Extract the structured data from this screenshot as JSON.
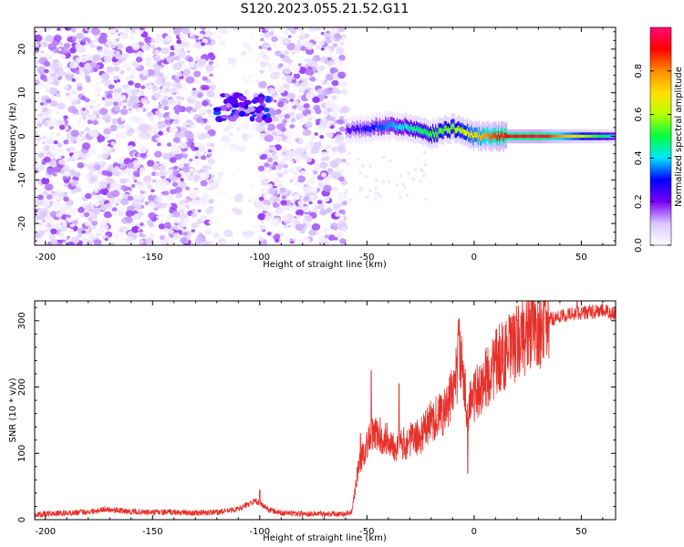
{
  "title": "S120.2023.055.21.52.G11",
  "colors": {
    "snr_line": "#e8302a",
    "colormap": [
      "#ffffff",
      "#d9c6ff",
      "#7a00f5",
      "#0000ff",
      "#00e5ff",
      "#00ff40",
      "#b8ff00",
      "#ffe000",
      "#ff8c00",
      "#ff0000",
      "#ff0a78"
    ]
  },
  "chart_data": [
    {
      "type": "heatmap",
      "xlabel": "Height of straight line (km)",
      "ylabel": "Frequency (Hz)",
      "xlim": [
        -205,
        66
      ],
      "ylim": [
        -25,
        25
      ],
      "xticks": [
        -200,
        -150,
        -100,
        -50,
        0,
        50
      ],
      "xtick_labels": [
        "-200",
        "-150",
        "-100",
        "-50",
        "0",
        "50"
      ],
      "yticks": [
        -20,
        -10,
        0,
        10,
        20
      ],
      "ytick_labels": [
        "-20",
        "-10",
        "0",
        "10",
        "20"
      ],
      "colorbar": {
        "label": "Normalized spectral amplitude",
        "range": [
          0,
          1
        ],
        "ticks": [
          0.0,
          0.2,
          0.4,
          0.6,
          0.8
        ],
        "tick_labels": [
          "0.0",
          "0.2",
          "0.4",
          "0.6",
          "0.8"
        ]
      },
      "noise_region_x": [
        -205,
        -60
      ],
      "gap_region_x": [
        -122,
        -100
      ],
      "blob": {
        "x": [
          -120,
          -96
        ],
        "y_center": 6.5,
        "peak": 0.25
      },
      "ridge": [
        {
          "x": -60,
          "y": 1.5,
          "a": 0.22
        },
        {
          "x": -50,
          "y": 2.0,
          "a": 0.28
        },
        {
          "x": -40,
          "y": 2.5,
          "a": 0.36
        },
        {
          "x": -30,
          "y": 2.0,
          "a": 0.44
        },
        {
          "x": -20,
          "y": 0.5,
          "a": 0.52
        },
        {
          "x": -10,
          "y": 2.0,
          "a": 0.56
        },
        {
          "x": 0,
          "y": 0.0,
          "a": 0.7
        },
        {
          "x": 10,
          "y": 0.0,
          "a": 0.88
        },
        {
          "x": 30,
          "y": 0.0,
          "a": 0.95
        },
        {
          "x": 50,
          "y": 0.0,
          "a": 0.62
        },
        {
          "x": 66,
          "y": 0.0,
          "a": 0.4
        }
      ]
    },
    {
      "type": "line",
      "xlabel": "Height of straight line (km)",
      "ylabel": "SNR (10 * v/v)",
      "xlim": [
        -205,
        66
      ],
      "ylim": [
        0,
        330
      ],
      "xticks": [
        -200,
        -150,
        -100,
        -50,
        0,
        50
      ],
      "xtick_labels": [
        "-200",
        "-150",
        "-100",
        "-50",
        "0",
        "50"
      ],
      "yticks": [
        0,
        100,
        200,
        300
      ],
      "ytick_labels": [
        "0",
        "100",
        "200",
        "300"
      ],
      "series": [
        {
          "x": [
            -205,
            -190,
            -180,
            -172,
            -160,
            -150,
            -140,
            -130,
            -120,
            -110,
            -105,
            -102,
            -98,
            -95,
            -90,
            -80,
            -70,
            -60,
            -57,
            -54,
            -50,
            -46,
            -40,
            -35,
            -30,
            -25,
            -20,
            -15,
            -12,
            -10,
            -8,
            -7,
            -5,
            -3,
            0,
            3,
            8,
            12,
            15,
            20,
            25,
            30,
            35,
            40,
            45,
            50,
            55,
            60,
            66
          ],
          "y": [
            8,
            10,
            12,
            16,
            12,
            11,
            11,
            10,
            11,
            16,
            24,
            28,
            20,
            14,
            10,
            9,
            9,
            9,
            12,
            80,
            115,
            130,
            120,
            110,
            120,
            125,
            150,
            160,
            170,
            200,
            220,
            270,
            200,
            170,
            185,
            200,
            225,
            245,
            250,
            265,
            285,
            290,
            302,
            306,
            310,
            312,
            313,
            315,
            310
          ],
          "spikes": [
            [
              -100,
              45
            ],
            [
              -53,
              130
            ],
            [
              -48,
              225
            ],
            [
              -35,
              205
            ],
            [
              -7,
              303
            ],
            [
              -3,
              70
            ],
            [
              10,
              240
            ],
            [
              48,
              330
            ]
          ]
        }
      ]
    }
  ]
}
